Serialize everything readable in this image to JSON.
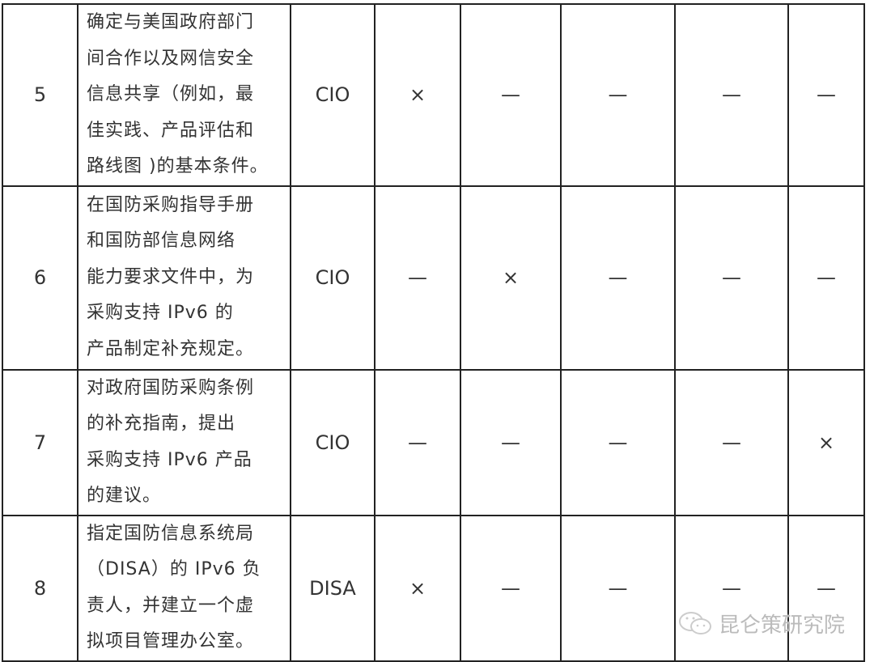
{
  "rows": [
    {
      "num": "5",
      "desc": [
        "确定与美国政府部门",
        "间合作以及网信安全",
        "信息共享（例如，最",
        "佳实践、产品评估和",
        "路线图 )的基本条件。"
      ],
      "org": "CIO",
      "marks": [
        "×",
        "—",
        "—",
        "—",
        "—"
      ]
    },
    {
      "num": "6",
      "desc": [
        "在国防采购指导手册",
        "和国防部信息网络",
        "能力要求文件中，为",
        "采购支持 IPv6 的",
        "产品制定补充规定。"
      ],
      "org": "CIO",
      "marks": [
        "—",
        "×",
        "—",
        "—",
        "—"
      ]
    },
    {
      "num": "7",
      "desc": [
        "对政府国防采购条例",
        "的补充指南，提出",
        "采购支持 IPv6 产品",
        "的建议。"
      ],
      "org": "CIO",
      "marks": [
        "—",
        "—",
        "—",
        "—",
        "×"
      ]
    },
    {
      "num": "8",
      "desc": [
        "指定国防信息系统局",
        "（DISA）的 IPv6 负",
        "责人，并建立一个虚",
        "拟项目管理办公室。"
      ],
      "org": "DISA",
      "marks": [
        "×",
        "—",
        "—",
        "—",
        "—"
      ]
    }
  ],
  "watermark": {
    "text": "昆仑策研究院",
    "icon": "wechat-icon"
  }
}
